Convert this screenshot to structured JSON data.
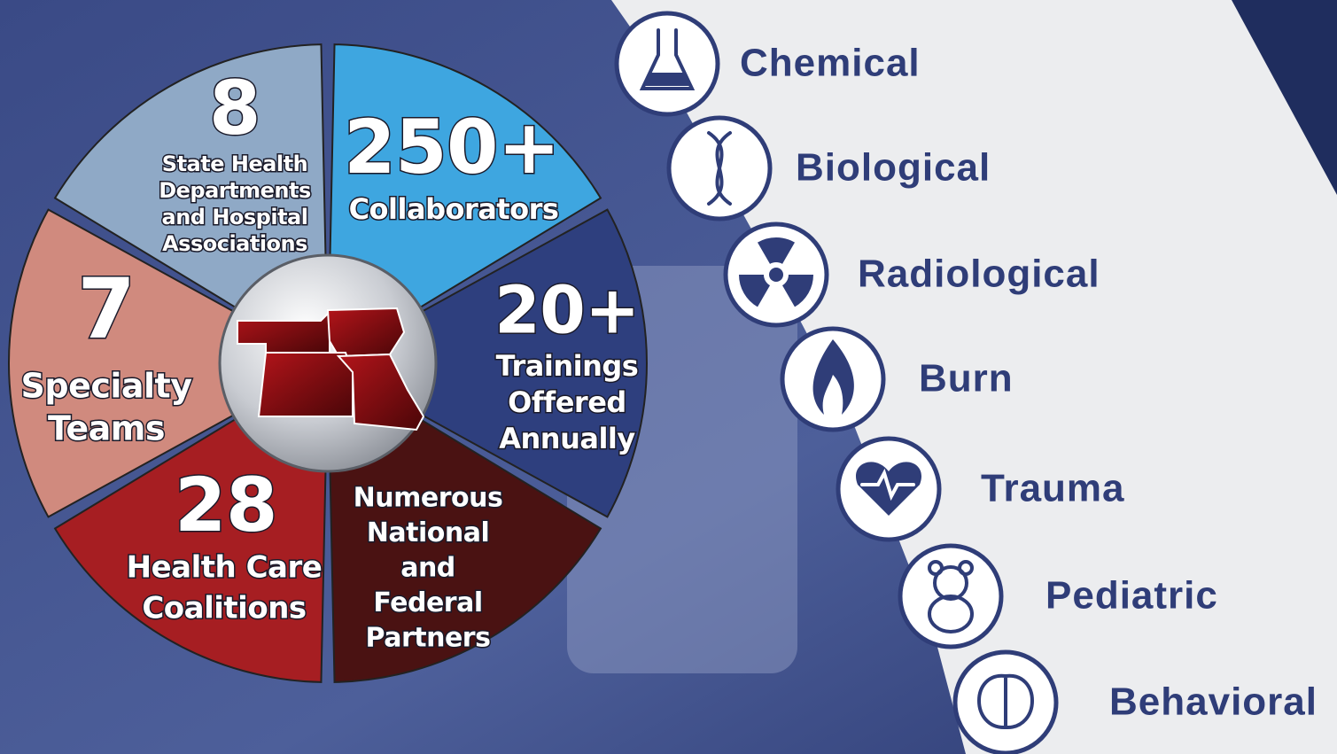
{
  "segments": [
    {
      "number": "8",
      "lines": [
        "State Health",
        "Departments",
        "and Hospital",
        "Associations"
      ]
    },
    {
      "number": "250+",
      "lines": [
        "Collaborators"
      ]
    },
    {
      "number": "20+",
      "lines": [
        "Trainings",
        "Offered",
        "Annually"
      ]
    },
    {
      "lines": [
        "Numerous",
        "National",
        "and",
        "Federal",
        "Partners"
      ]
    },
    {
      "number": "28",
      "lines": [
        "Health Care",
        "Coalitions"
      ]
    },
    {
      "number": "7",
      "lines": [
        "Specialty",
        "Teams"
      ]
    }
  ],
  "capabilities": [
    "Chemical",
    "Biological",
    "Radiological",
    "Burn",
    "Trauma",
    "Pediatric",
    "Behavioral"
  ]
}
